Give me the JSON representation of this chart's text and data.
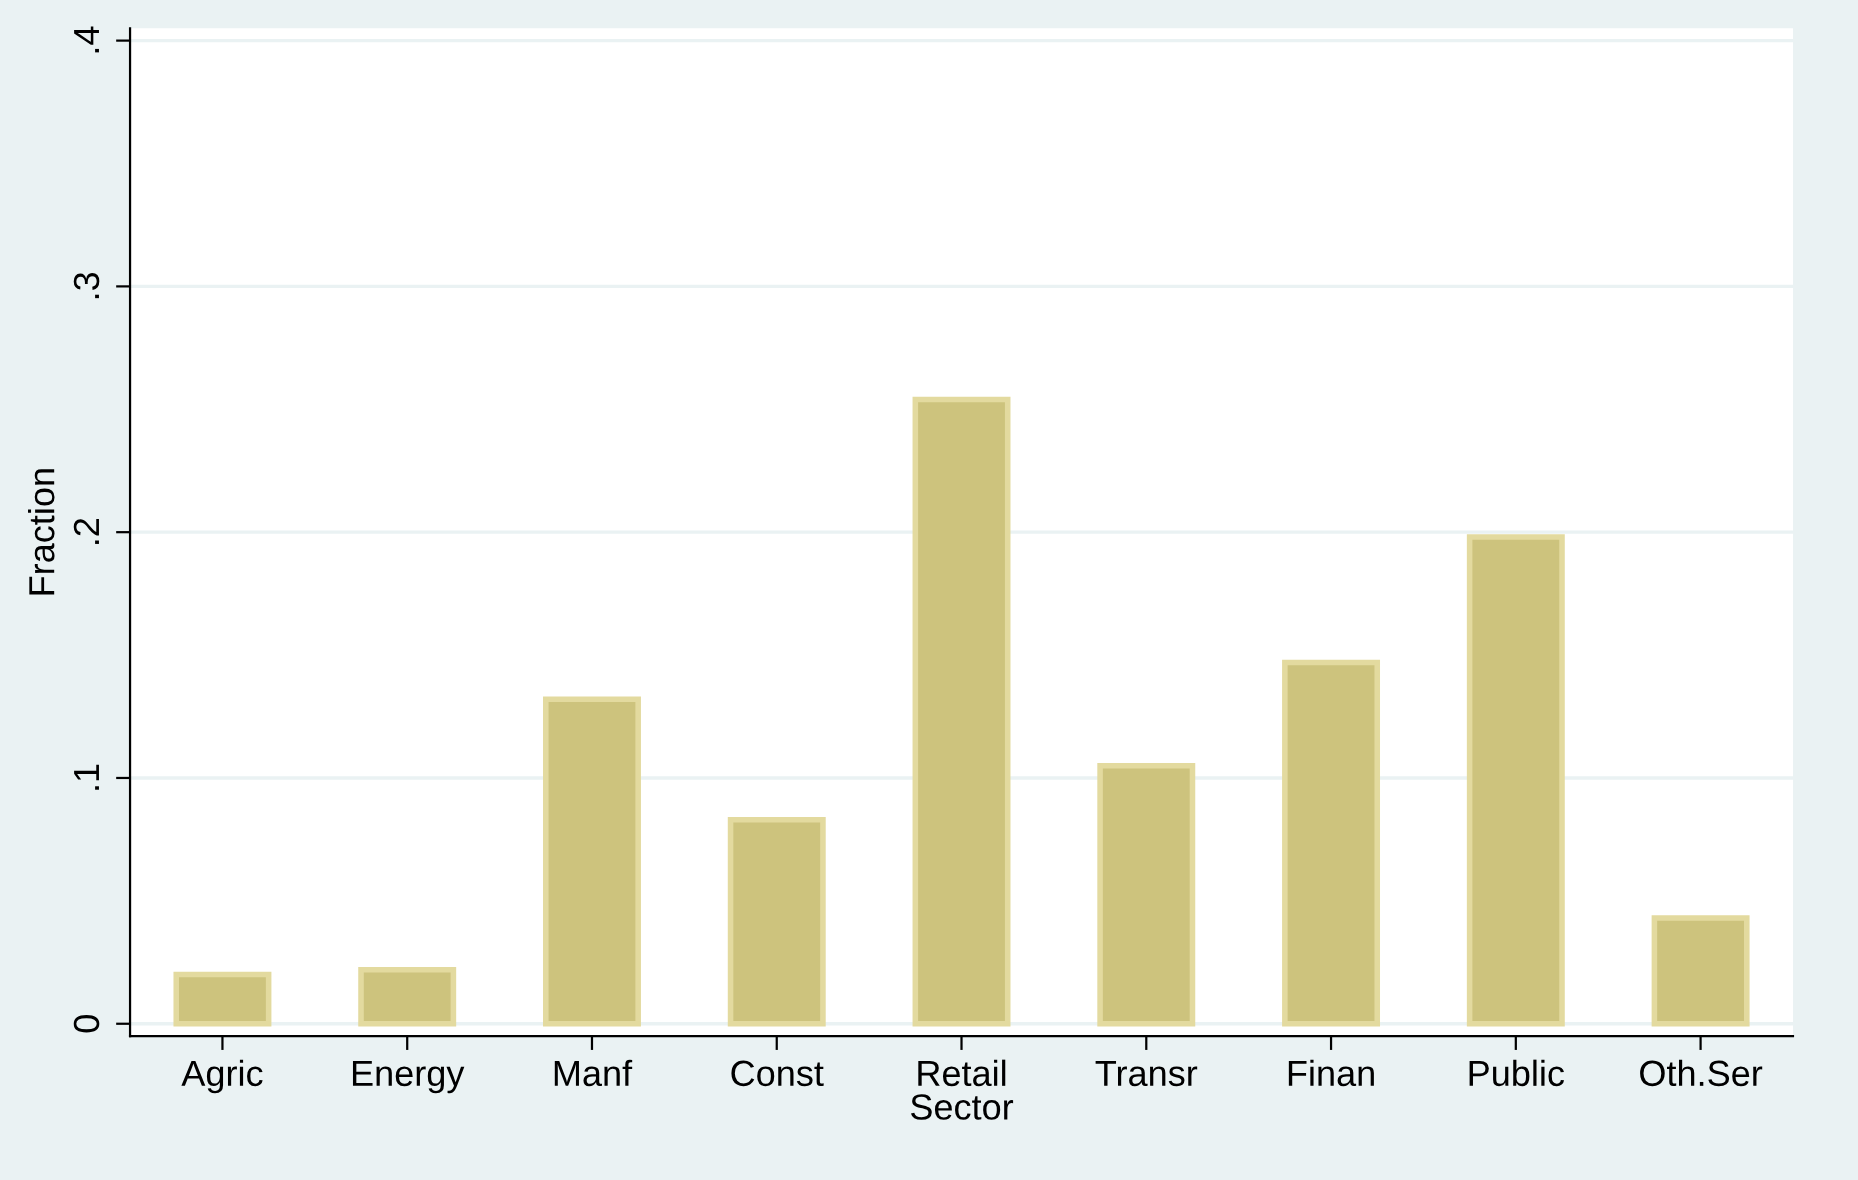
{
  "chart_data": {
    "type": "bar",
    "xlabel": "Sector",
    "ylabel": "Fraction",
    "categories": [
      "Agric",
      "Energy",
      "Manf",
      "Const",
      "Retail",
      "Transr",
      "Finan",
      "Public",
      "Oth.Ser"
    ],
    "values": [
      0.02,
      0.022,
      0.132,
      0.083,
      0.254,
      0.105,
      0.147,
      0.198,
      0.043
    ],
    "color": "#cdc37d",
    "ylim": [
      -0.005,
      0.405
    ],
    "yticks": [
      0,
      {
        "value": 0.1,
        "label": ".1"
      },
      {
        "value": 0.2,
        "label": ".2"
      },
      {
        "value": 0.3,
        "label": ".3"
      },
      {
        "value": 0.4,
        "label": ".4"
      }
    ],
    "grid": "y"
  }
}
